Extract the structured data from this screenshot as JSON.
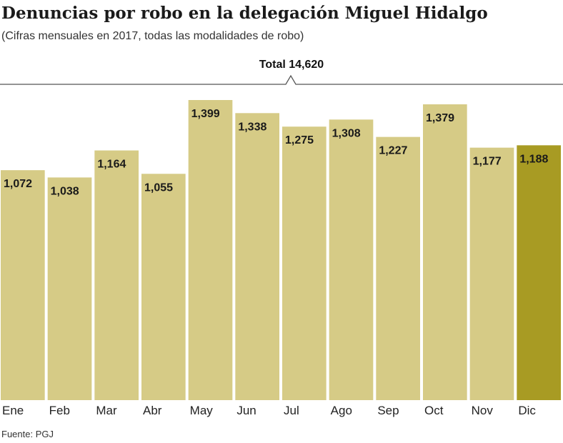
{
  "chart_data": {
    "type": "bar",
    "title": "Denuncias por robo en la delegación Miguel Hidalgo",
    "subtitle": "(Cifras mensuales en 2017, todas las modalidades de robo)",
    "annotation": "Total 14,620",
    "source": "Fuente: PGJ",
    "categories": [
      "Ene",
      "Feb",
      "Mar",
      "Abr",
      "May",
      "Jun",
      "Jul",
      "Ago",
      "Sep",
      "Oct",
      "Nov",
      "Dic"
    ],
    "values": [
      1072,
      1038,
      1164,
      1055,
      1399,
      1338,
      1275,
      1308,
      1227,
      1379,
      1177,
      1188
    ],
    "value_labels": [
      "1,072",
      "1,038",
      "1,164",
      "1,055",
      "1,399",
      "1,338",
      "1,275",
      "1,308",
      "1,227",
      "1,379",
      "1,177",
      "1,188"
    ],
    "colors": [
      "#d6cb86",
      "#d6cb86",
      "#d6cb86",
      "#d6cb86",
      "#d6cb86",
      "#d6cb86",
      "#d6cb86",
      "#d6cb86",
      "#d6cb86",
      "#d6cb86",
      "#d6cb86",
      "#a89b23"
    ]
  }
}
